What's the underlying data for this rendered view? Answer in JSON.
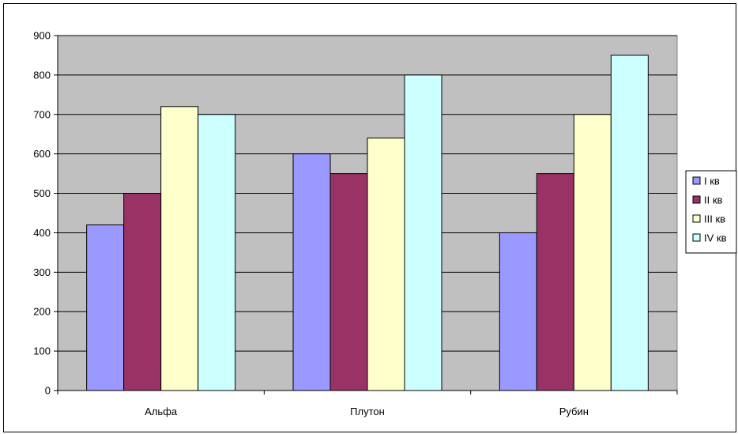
{
  "chart_data": {
    "type": "bar",
    "title": "",
    "xlabel": "",
    "ylabel": "",
    "categories": [
      "Альфа",
      "Плутон",
      "Рубин"
    ],
    "series": [
      {
        "name": "I кв",
        "values": [
          420,
          600,
          400
        ],
        "color": "#9999FF"
      },
      {
        "name": "II кв",
        "values": [
          500,
          550,
          550
        ],
        "color": "#993366"
      },
      {
        "name": "III кв",
        "values": [
          720,
          640,
          700
        ],
        "color": "#FFFFCC"
      },
      {
        "name": "IV кв",
        "values": [
          700,
          800,
          850
        ],
        "color": "#CCFFFF"
      }
    ],
    "ylim": [
      0,
      900
    ],
    "yticks": [
      0,
      100,
      200,
      300,
      400,
      500,
      600,
      700,
      800,
      900
    ],
    "grid": true,
    "legend_position": "right",
    "plot_background": "#C0C0C0"
  }
}
